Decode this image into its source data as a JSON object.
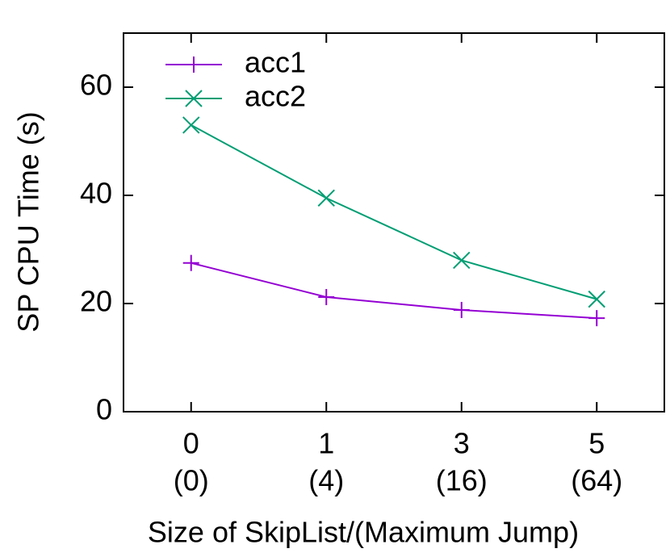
{
  "chart_data": {
    "type": "line",
    "x_label": "Size of SkipList/(Maximum Jump)",
    "y_label": "SP CPU Time (s)",
    "categories": [
      "0",
      "1",
      "3",
      "5"
    ],
    "category_sublabels": [
      "(0)",
      "(4)",
      "(16)",
      "(64)"
    ],
    "series": [
      {
        "name": "acc1",
        "color": "#9400d3",
        "marker": "plus",
        "values": [
          27.5,
          21.2,
          18.8,
          17.3
        ]
      },
      {
        "name": "acc2",
        "color": "#009e73",
        "marker": "cross",
        "values": [
          53,
          39.5,
          28,
          20.8
        ]
      }
    ],
    "ylim": [
      0,
      70
    ],
    "yticks": [
      0,
      20,
      40,
      60
    ],
    "grid": false,
    "legend": "top-left"
  }
}
